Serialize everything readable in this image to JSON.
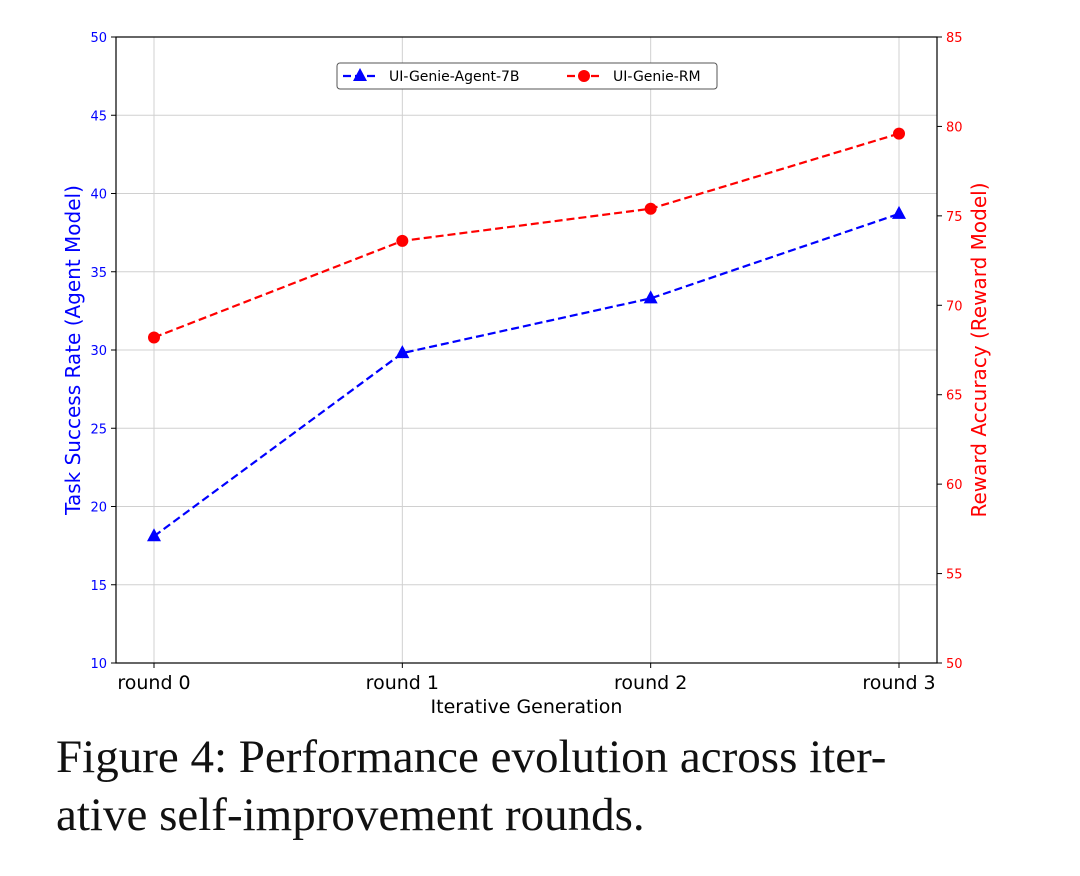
{
  "chart_data": {
    "type": "line",
    "categories": [
      "round 0",
      "round 1",
      "round 2",
      "round 3"
    ],
    "xlabel": "Iterative Generation",
    "ylabel": "Task Success Rate (Agent Model)",
    "y2label": "Reward Accuracy (Reward Model)",
    "ylim": [
      10,
      50
    ],
    "y2lim": [
      50,
      85
    ],
    "yticks": [
      10,
      15,
      20,
      25,
      30,
      35,
      40,
      45,
      50
    ],
    "y2ticks": [
      50,
      55,
      60,
      65,
      70,
      75,
      80,
      85
    ],
    "grid": true,
    "legend_position": "top-center",
    "series": [
      {
        "name": "UI-Genie-Agent-7B",
        "axis": "left",
        "color": "#0000ff",
        "marker": "triangle",
        "values": [
          18.1,
          29.8,
          33.3,
          38.7
        ]
      },
      {
        "name": "UI-Genie-RM",
        "axis": "right",
        "color": "#ff0000",
        "marker": "circle",
        "values": [
          68.2,
          73.6,
          75.4,
          79.6
        ]
      }
    ]
  },
  "caption": {
    "label": "Figure 4:",
    "text": "Performance evolution across iter-ative self-improvement rounds.",
    "line1": "Performance evolution across iter-",
    "line2": "ative self-improvement rounds."
  }
}
